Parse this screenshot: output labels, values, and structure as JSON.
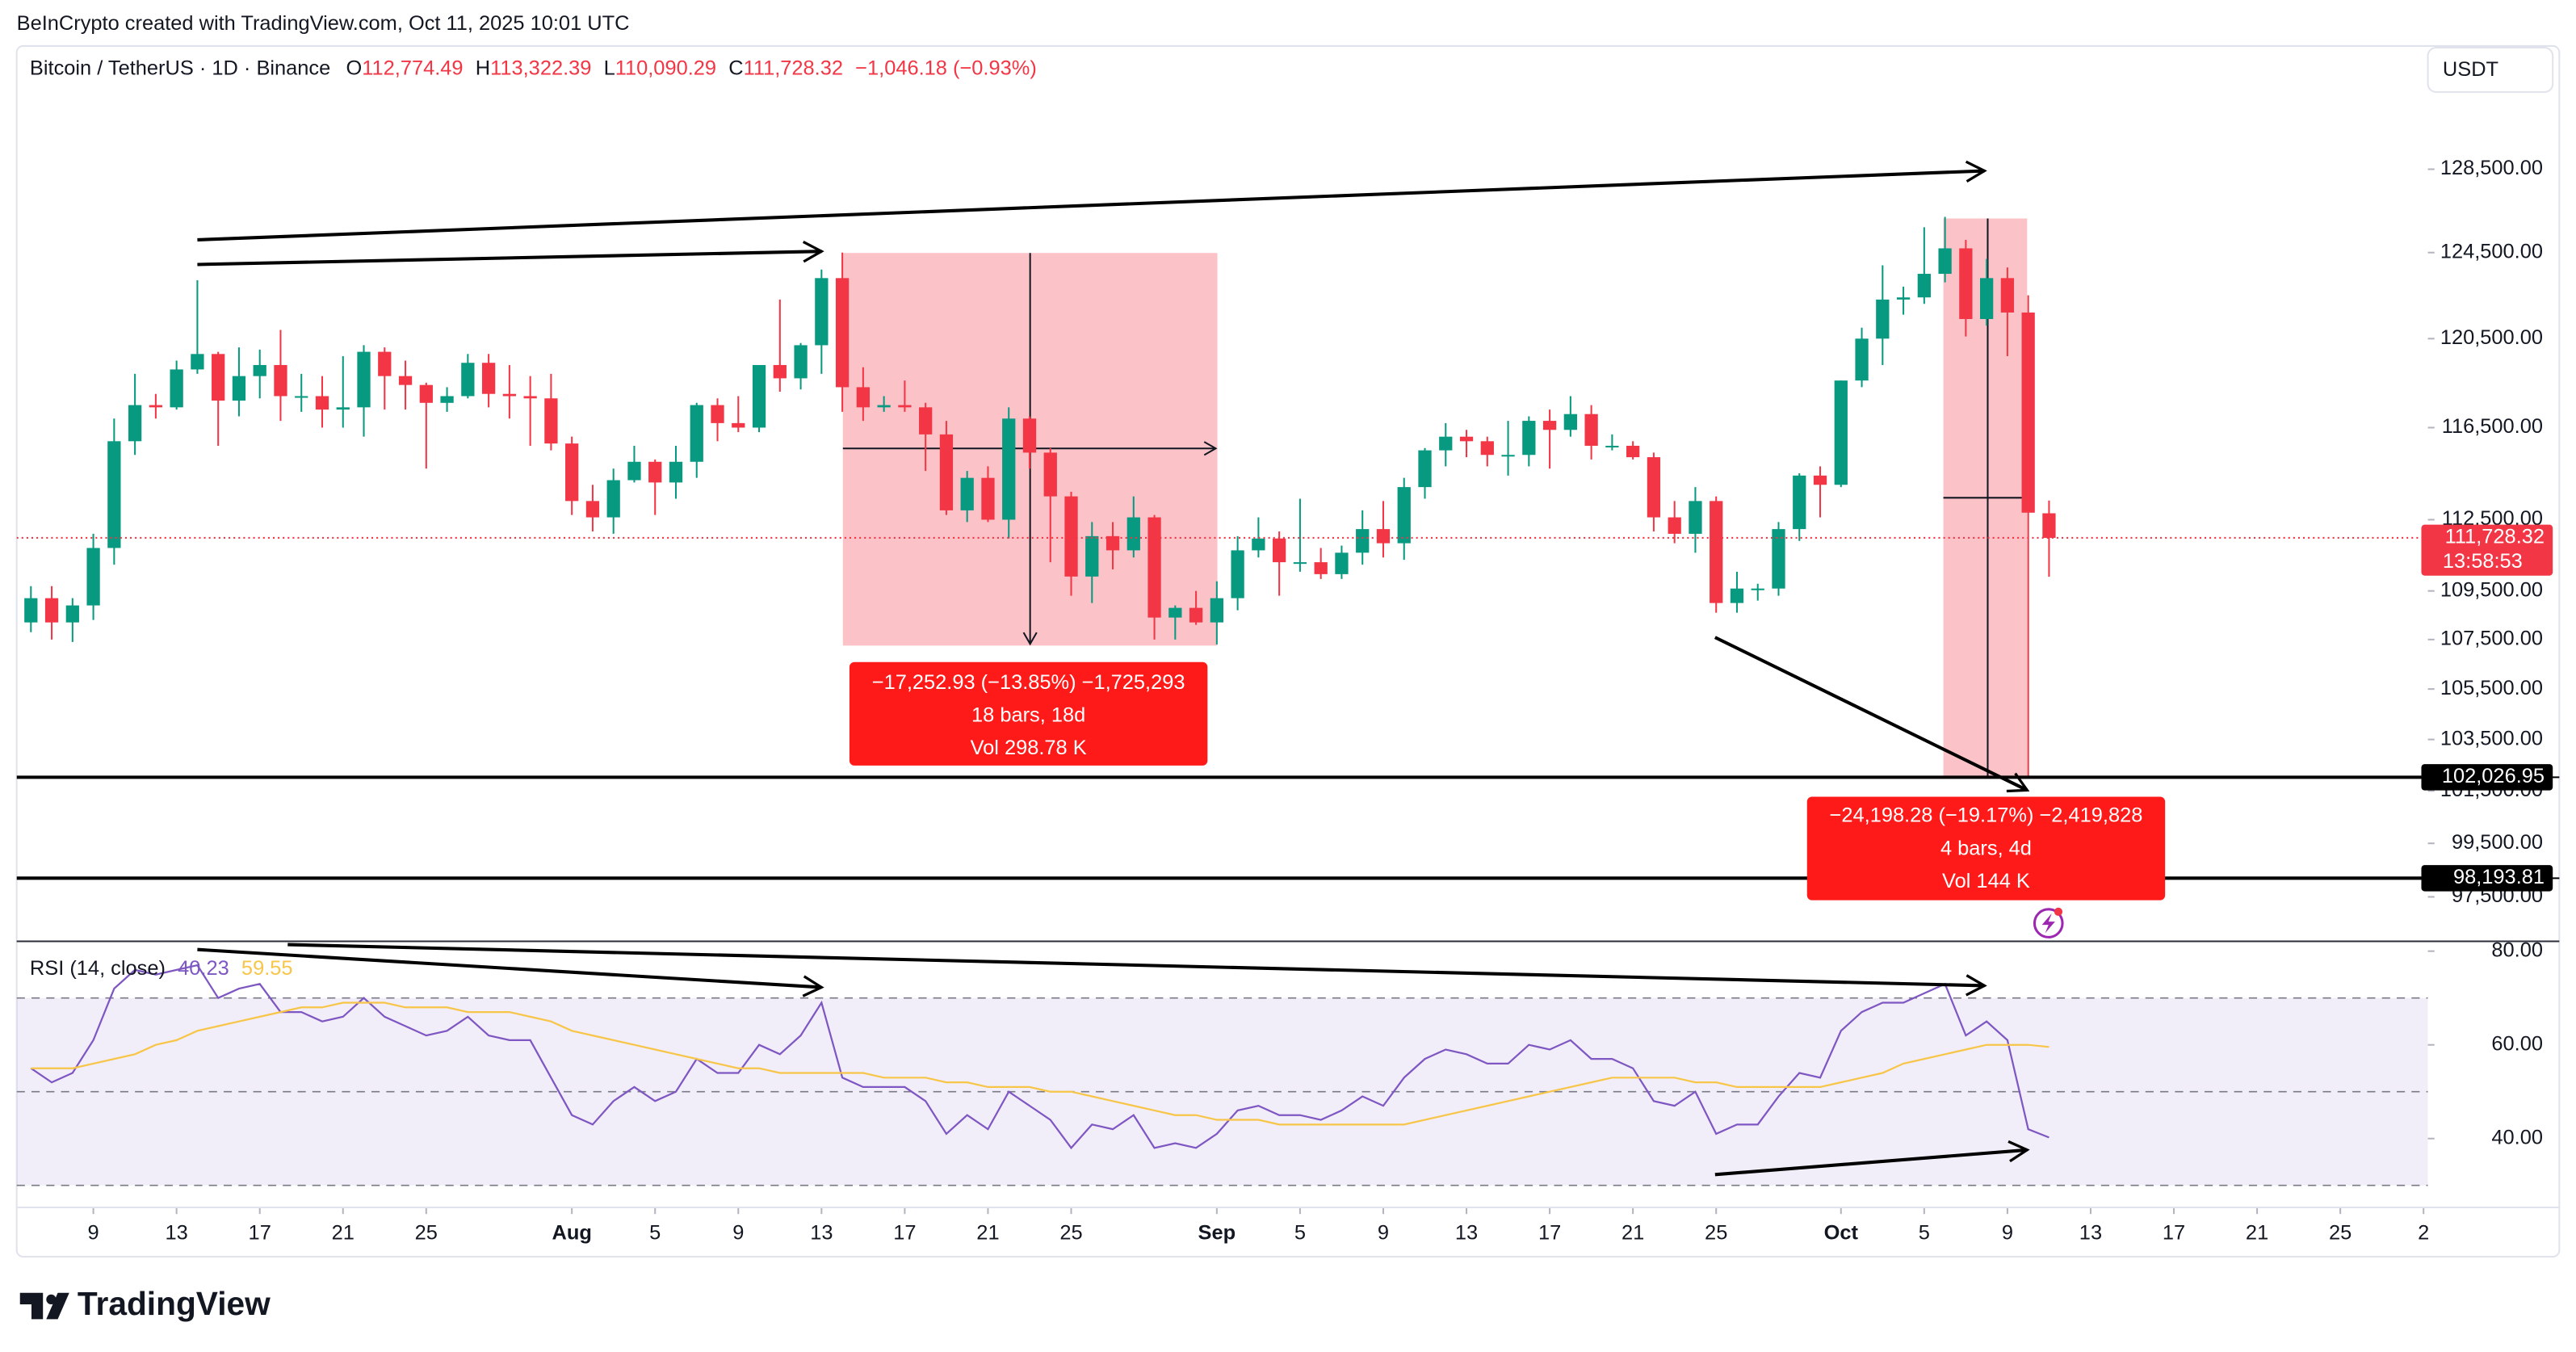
{
  "header": {
    "credit": "BeInCrypto created with TradingView.com, Oct 11, 2025 10:01 UTC",
    "symbol": "Bitcoin / TetherUS · 1D · Binance",
    "ohlc": [
      {
        "key": "O",
        "value": "112,774.49"
      },
      {
        "key": "H",
        "value": "113,322.39"
      },
      {
        "key": "L",
        "value": "110,090.29"
      },
      {
        "key": "C",
        "value": "111,728.32"
      }
    ],
    "change": "−1,046.18 (−0.93%)",
    "currency": "USDT"
  },
  "chart_data": [
    {
      "type": "candlestick",
      "log_scale": true,
      "grid": false,
      "up_color": "#089981",
      "down_color": "#f23645",
      "x": [
        "Jul 6",
        "Jul 7",
        "Jul 8",
        "Jul 9",
        "Jul 10",
        "Jul 11",
        "Jul 12",
        "Jul 13",
        "Jul 14",
        "Jul 15",
        "Jul 16",
        "Jul 17",
        "Jul 18",
        "Jul 19",
        "Jul 20",
        "Jul 21",
        "Jul 22",
        "Jul 23",
        "Jul 24",
        "Jul 25",
        "Jul 26",
        "Jul 27",
        "Jul 28",
        "Jul 29",
        "Jul 30",
        "Jul 31",
        "Aug 1",
        "Aug 2",
        "Aug 3",
        "Aug 4",
        "Aug 5",
        "Aug 6",
        "Aug 7",
        "Aug 8",
        "Aug 9",
        "Aug 10",
        "Aug 11",
        "Aug 12",
        "Aug 13",
        "Aug 14",
        "Aug 15",
        "Aug 16",
        "Aug 17",
        "Aug 18",
        "Aug 19",
        "Aug 20",
        "Aug 21",
        "Aug 22",
        "Aug 23",
        "Aug 24",
        "Aug 25",
        "Aug 26",
        "Aug 27",
        "Aug 28",
        "Aug 29",
        "Aug 30",
        "Aug 31",
        "Sep 1",
        "Sep 2",
        "Sep 3",
        "Sep 4",
        "Sep 5",
        "Sep 6",
        "Sep 7",
        "Sep 8",
        "Sep 9",
        "Sep 10",
        "Sep 11",
        "Sep 12",
        "Sep 13",
        "Sep 14",
        "Sep 15",
        "Sep 16",
        "Sep 17",
        "Sep 18",
        "Sep 19",
        "Sep 20",
        "Sep 21",
        "Sep 22",
        "Sep 23",
        "Sep 24",
        "Sep 25",
        "Sep 26",
        "Sep 27",
        "Sep 28",
        "Sep 29",
        "Sep 30",
        "Oct 1",
        "Oct 2",
        "Oct 3",
        "Oct 4",
        "Oct 5",
        "Oct 6",
        "Oct 7",
        "Oct 8",
        "Oct 9",
        "Oct 10",
        "Oct 11"
      ],
      "open": [
        108200,
        109200,
        108200,
        108900,
        111300,
        115900,
        117500,
        117400,
        119100,
        119800,
        117700,
        118800,
        119300,
        117900,
        117900,
        117300,
        117400,
        119900,
        118800,
        118400,
        117600,
        117900,
        119400,
        118000,
        117900,
        117800,
        115800,
        113300,
        112600,
        114200,
        115000,
        114100,
        115000,
        117500,
        116700,
        116500,
        119300,
        118700,
        120200,
        123300,
        118300,
        117400,
        117500,
        117400,
        116200,
        112900,
        114300,
        112500,
        116900,
        115400,
        113500,
        110100,
        111800,
        111200,
        112600,
        108400,
        108800,
        108200,
        109200,
        111200,
        111700,
        110700,
        110700,
        110200,
        111100,
        112100,
        111500,
        113900,
        115500,
        116100,
        115900,
        115300,
        115300,
        116800,
        116400,
        117100,
        115700,
        115700,
        115200,
        112600,
        111900,
        113300,
        109000,
        109600,
        109600,
        112100,
        114400,
        114000,
        118600,
        120500,
        122300,
        122400,
        123500,
        124700,
        121400,
        123300,
        121700,
        112774.49
      ],
      "high": [
        109700,
        109700,
        109200,
        111900,
        116900,
        118900,
        118000,
        119500,
        123200,
        119900,
        120100,
        120000,
        120900,
        118900,
        118800,
        119700,
        120200,
        120100,
        119500,
        118500,
        118300,
        119800,
        119800,
        119300,
        118800,
        118900,
        116100,
        114000,
        114700,
        115700,
        115100,
        115700,
        117600,
        117800,
        117900,
        119300,
        122300,
        120300,
        123700,
        124500,
        119200,
        117900,
        118600,
        117600,
        116800,
        114600,
        114800,
        117400,
        117000,
        115600,
        113700,
        112400,
        112400,
        113500,
        112700,
        108900,
        109500,
        109900,
        111800,
        112600,
        112000,
        113400,
        111300,
        111400,
        112900,
        113300,
        114300,
        115600,
        116700,
        116400,
        116100,
        116800,
        117000,
        117300,
        117900,
        117500,
        116200,
        115900,
        115400,
        113300,
        113900,
        113500,
        110300,
        109800,
        112400,
        114500,
        114800,
        118600,
        121000,
        123900,
        122900,
        125700,
        126200,
        125100,
        124200,
        123800,
        122500,
        113322.39
      ],
      "low": [
        107800,
        107500,
        107400,
        108300,
        110600,
        115300,
        116900,
        117300,
        118900,
        115700,
        117000,
        117800,
        116800,
        117200,
        116500,
        116500,
        116100,
        117300,
        117300,
        114700,
        117200,
        117800,
        117400,
        116900,
        115700,
        115500,
        112700,
        112000,
        111900,
        114100,
        112700,
        113400,
        114300,
        115900,
        116300,
        116300,
        118100,
        118200,
        118900,
        117200,
        116800,
        117200,
        117200,
        114600,
        112700,
        112400,
        112400,
        111700,
        114700,
        110700,
        109300,
        109000,
        110400,
        110900,
        107500,
        107500,
        108100,
        107300,
        108700,
        110900,
        109300,
        110300,
        110000,
        110000,
        110600,
        110900,
        110800,
        113400,
        114800,
        115200,
        114800,
        114400,
        114800,
        114700,
        116100,
        115100,
        115500,
        115100,
        112000,
        111500,
        111100,
        108600,
        108600,
        109100,
        109300,
        111600,
        112600,
        113900,
        118300,
        119300,
        121600,
        122100,
        123100,
        120600,
        121100,
        119700,
        102000,
        110090.29
      ],
      "close": [
        109200,
        108200,
        108900,
        111300,
        115900,
        117500,
        117400,
        119100,
        119800,
        117700,
        118800,
        119300,
        117900,
        117900,
        117300,
        117400,
        119900,
        118800,
        118400,
        117600,
        117900,
        119400,
        118000,
        117900,
        117800,
        115800,
        113300,
        112600,
        114200,
        115000,
        114100,
        115000,
        117500,
        116700,
        116500,
        119300,
        118700,
        120200,
        123300,
        118300,
        117400,
        117500,
        117400,
        116200,
        112900,
        114300,
        112500,
        116900,
        115400,
        113500,
        110100,
        111800,
        111200,
        112600,
        108400,
        108800,
        108200,
        109200,
        111200,
        111700,
        110700,
        110700,
        110200,
        111100,
        112100,
        111500,
        113900,
        115500,
        116100,
        115900,
        115300,
        115300,
        116800,
        116400,
        117100,
        115700,
        115700,
        115200,
        112600,
        111900,
        113300,
        109000,
        109600,
        109600,
        112100,
        114400,
        114000,
        118600,
        120500,
        122300,
        122400,
        123500,
        124700,
        121400,
        123300,
        121700,
        112800,
        111728.32
      ],
      "xlim": [
        "Jul 5",
        "Oct 30"
      ],
      "xticks": [
        {
          "value": "Jul 9",
          "label": "9"
        },
        {
          "value": "Jul 13",
          "label": "13"
        },
        {
          "value": "Jul 17",
          "label": "17"
        },
        {
          "value": "Jul 21",
          "label": "21"
        },
        {
          "value": "Jul 25",
          "label": "25"
        },
        {
          "value": "Aug 1",
          "label": "Aug"
        },
        {
          "value": "Aug 5",
          "label": "5"
        },
        {
          "value": "Aug 9",
          "label": "9"
        },
        {
          "value": "Aug 13",
          "label": "13"
        },
        {
          "value": "Aug 17",
          "label": "17"
        },
        {
          "value": "Aug 21",
          "label": "21"
        },
        {
          "value": "Aug 25",
          "label": "25"
        },
        {
          "value": "Sep 1",
          "label": "Sep"
        },
        {
          "value": "Sep 5",
          "label": "5"
        },
        {
          "value": "Sep 9",
          "label": "9"
        },
        {
          "value": "Sep 13",
          "label": "13"
        },
        {
          "value": "Sep 17",
          "label": "17"
        },
        {
          "value": "Sep 21",
          "label": "21"
        },
        {
          "value": "Sep 25",
          "label": "25"
        },
        {
          "value": "Oct 1",
          "label": "Oct"
        },
        {
          "value": "Oct 5",
          "label": "5"
        },
        {
          "value": "Oct 9",
          "label": "9"
        },
        {
          "value": "Oct 13",
          "label": "13"
        },
        {
          "value": "Oct 17",
          "label": "17"
        },
        {
          "value": "Oct 21",
          "label": "21"
        },
        {
          "value": "Oct 25",
          "label": "25"
        },
        {
          "value": "Oct 29",
          "label": "2"
        }
      ],
      "ylim": [
        95930,
        134650
      ],
      "yticks": [
        {
          "value": 128500,
          "label": "128,500.00"
        },
        {
          "value": 124500,
          "label": "124,500.00"
        },
        {
          "value": 120500,
          "label": "120,500.00"
        },
        {
          "value": 116500,
          "label": "116,500.00"
        },
        {
          "value": 112500,
          "label": "112,500.00"
        },
        {
          "value": 109500,
          "label": "109,500.00"
        },
        {
          "value": 107500,
          "label": "107,500.00"
        },
        {
          "value": 105500,
          "label": "105,500.00"
        },
        {
          "value": 103500,
          "label": "103,500.00"
        },
        {
          "value": 101500,
          "label": "101,500.00"
        },
        {
          "value": 99500,
          "label": "99,500.00"
        },
        {
          "value": 97500,
          "label": "97,500.00"
        }
      ],
      "price_tags": [
        {
          "value": 111728.32,
          "label": "111,728.32",
          "color": "#f23645"
        },
        {
          "value": 102026.95,
          "label": "102,026.95",
          "color": "#000000"
        },
        {
          "value": 98193.81,
          "label": "98,193.81",
          "color": "#000000"
        }
      ],
      "countdown": "13:58:53"
    },
    {
      "type": "line",
      "title": "RSI (14, close)",
      "ylim": [
        25.3,
        81.75
      ],
      "yticks": [
        {
          "value": 80,
          "label": "80.00"
        },
        {
          "value": 60,
          "label": "60.00"
        },
        {
          "value": 40,
          "label": "40.00"
        }
      ],
      "levels": [
        70,
        50,
        30
      ],
      "series": [
        {
          "color": "#7e57c2",
          "values": [
            55,
            52,
            54,
            61,
            72,
            76,
            75,
            76,
            77,
            70,
            72,
            73,
            67,
            67,
            65,
            66,
            70,
            66,
            64,
            62,
            63,
            66,
            62,
            61,
            61,
            53,
            45,
            43,
            48,
            51,
            48,
            50,
            57,
            54,
            54,
            60,
            58,
            62,
            69,
            53,
            51,
            51,
            51,
            48,
            41,
            45,
            42,
            50,
            47,
            44,
            38,
            43,
            42,
            45,
            38,
            39,
            38,
            41,
            46,
            47,
            45,
            45,
            44,
            46,
            49,
            47,
            53,
            57,
            59,
            58,
            56,
            56,
            60,
            59,
            61,
            57,
            57,
            55,
            48,
            47,
            50,
            41,
            43,
            43,
            49,
            54,
            53,
            63,
            67,
            69,
            69,
            71,
            73,
            62,
            65,
            61,
            42,
            40.23
          ]
        },
        {
          "color": "#f7c548",
          "values": [
            55,
            55,
            55,
            56,
            57,
            58,
            60,
            61,
            63,
            64,
            65,
            66,
            67,
            68,
            68,
            69,
            69,
            69,
            68,
            68,
            68,
            67,
            67,
            67,
            66,
            65,
            63,
            62,
            61,
            60,
            59,
            58,
            57,
            56,
            55,
            55,
            54,
            54,
            54,
            54,
            54,
            53,
            53,
            53,
            52,
            52,
            51,
            51,
            51,
            50,
            50,
            49,
            48,
            47,
            46,
            45,
            45,
            44,
            44,
            44,
            43,
            43,
            43,
            43,
            43,
            43,
            43,
            44,
            45,
            46,
            47,
            48,
            49,
            50,
            51,
            52,
            53,
            53,
            53,
            53,
            52,
            52,
            51,
            51,
            51,
            51,
            51,
            52,
            53,
            54,
            56,
            57,
            58,
            59,
            60,
            60,
            60,
            59.55
          ]
        }
      ]
    }
  ],
  "annotations": {
    "measures": [
      [
        "−17,252.93 (−13.85%) −1,725,293",
        "18 bars, 18d",
        "Vol 298.78 K"
      ],
      [
        "−24,198.28 (−19.17%) −2,419,828",
        "4 bars, 4d",
        "Vol 144 K"
      ]
    ]
  },
  "footer": {
    "brand": "TradingView"
  }
}
